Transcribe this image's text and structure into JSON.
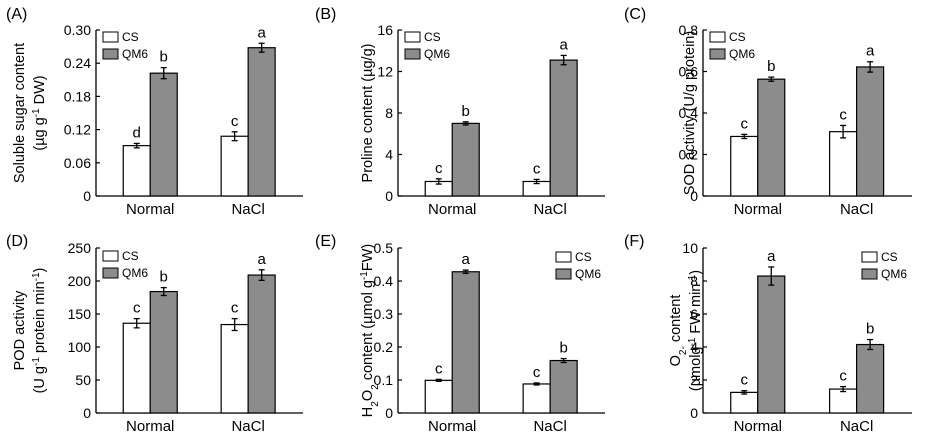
{
  "chart_data": [
    {
      "type": "bar",
      "panel": "(A)",
      "ylabel_lines": [
        [
          {
            "t": "Soluble sugar content"
          }
        ],
        [
          {
            "t": "(µg g"
          },
          {
            "t": "-1",
            "sup": true
          },
          {
            "t": " DW)"
          }
        ]
      ],
      "categories": [
        "Normal",
        "NaCl"
      ],
      "series": [
        {
          "name": "CS",
          "values": [
            0.091,
            0.108
          ],
          "errors": [
            0.004,
            0.008
          ],
          "labels": [
            "d",
            "c"
          ]
        },
        {
          "name": "QM6",
          "values": [
            0.222,
            0.268
          ],
          "errors": [
            0.01,
            0.008
          ],
          "labels": [
            "b",
            "a"
          ]
        }
      ],
      "ylim": [
        0,
        0.3
      ],
      "yticks": [
        "0",
        "0.06",
        "0.12",
        "0.18",
        "0.24",
        "0.30"
      ],
      "legend": [
        "CS",
        "QM6"
      ],
      "legend_position": "top-left"
    },
    {
      "type": "bar",
      "panel": "(B)",
      "ylabel_lines": [
        [
          {
            "t": "Proline content (µg/g)"
          }
        ]
      ],
      "categories": [
        "Normal",
        "NaCl"
      ],
      "series": [
        {
          "name": "CS",
          "values": [
            1.4,
            1.4
          ],
          "errors": [
            0.25,
            0.2
          ],
          "labels": [
            "c",
            "c"
          ]
        },
        {
          "name": "QM6",
          "values": [
            7.0,
            13.1
          ],
          "errors": [
            0.15,
            0.45
          ],
          "labels": [
            "b",
            "a"
          ]
        }
      ],
      "ylim": [
        0,
        16
      ],
      "yticks": [
        "0",
        "4",
        "8",
        "12",
        "16"
      ],
      "legend": [
        "CS",
        "QM6"
      ],
      "legend_position": "top-left"
    },
    {
      "type": "bar",
      "panel": "(C)",
      "ylabel_lines": [
        [
          {
            "t": "SOD activity (U/g protein)"
          }
        ]
      ],
      "categories": [
        "Normal",
        "NaCl"
      ],
      "series": [
        {
          "name": "CS",
          "values": [
            0.287,
            0.31
          ],
          "errors": [
            0.01,
            0.03
          ],
          "labels": [
            "c",
            "c"
          ]
        },
        {
          "name": "QM6",
          "values": [
            0.563,
            0.622
          ],
          "errors": [
            0.01,
            0.025
          ],
          "labels": [
            "b",
            "a"
          ]
        }
      ],
      "ylim": [
        0,
        0.8
      ],
      "yticks": [
        "0",
        "0.2",
        "0.4",
        "0.6",
        "0.8"
      ],
      "legend": [
        "CS",
        "QM6"
      ],
      "legend_position": "top-left"
    },
    {
      "type": "bar",
      "panel": "(D)",
      "ylabel_lines": [
        [
          {
            "t": "POD activity"
          }
        ],
        [
          {
            "t": "(U g"
          },
          {
            "t": "-1",
            "sup": true
          },
          {
            "t": " protein min"
          },
          {
            "t": "-1",
            "sup": true
          },
          {
            "t": ")"
          }
        ]
      ],
      "categories": [
        "Normal",
        "NaCl"
      ],
      "series": [
        {
          "name": "CS",
          "values": [
            136,
            134
          ],
          "errors": [
            7,
            9
          ],
          "labels": [
            "c",
            "c"
          ]
        },
        {
          "name": "QM6",
          "values": [
            184,
            209
          ],
          "errors": [
            6,
            8
          ],
          "labels": [
            "b",
            "a"
          ]
        }
      ],
      "ylim": [
        0,
        250
      ],
      "yticks": [
        "0",
        "50",
        "100",
        "150",
        "200",
        "250"
      ],
      "legend": [
        "CS",
        "QM6"
      ],
      "legend_position": "top-left"
    },
    {
      "type": "bar",
      "panel": "(E)",
      "ylabel_lines": [
        [
          {
            "t": "H"
          },
          {
            "t": "2",
            "sub": true
          },
          {
            "t": "O"
          },
          {
            "t": "2",
            "sub": true
          },
          {
            "t": " content (µmol g"
          },
          {
            "t": "-1",
            "sup": true
          },
          {
            "t": "FW)"
          }
        ]
      ],
      "categories": [
        "Normal",
        "NaCl"
      ],
      "series": [
        {
          "name": "CS",
          "values": [
            0.099,
            0.088
          ],
          "errors": [
            0.003,
            0.003
          ],
          "labels": [
            "c",
            "c"
          ]
        },
        {
          "name": "QM6",
          "values": [
            0.428,
            0.159
          ],
          "errors": [
            0.005,
            0.006
          ],
          "labels": [
            "a",
            "b"
          ]
        }
      ],
      "ylim": [
        0,
        0.5
      ],
      "yticks": [
        "0",
        "0.1",
        "0.2",
        "0.3",
        "0.4",
        "0.5"
      ],
      "legend": [
        "CS",
        "QM6"
      ],
      "legend_position": "top-right"
    },
    {
      "type": "bar",
      "panel": "(F)",
      "ylabel_lines": [
        [
          {
            "t": "O"
          },
          {
            "t": "2-",
            "sub": true
          },
          {
            "t": " content"
          }
        ],
        [
          {
            "t": "(µmolg"
          },
          {
            "t": "-1",
            "sup": true
          },
          {
            "t": " FW min"
          },
          {
            "t": "-1",
            "sup": true
          },
          {
            "t": ")"
          }
        ]
      ],
      "categories": [
        "Normal",
        "NaCl"
      ],
      "series": [
        {
          "name": "CS",
          "values": [
            1.25,
            1.45
          ],
          "errors": [
            0.1,
            0.15
          ],
          "labels": [
            "c",
            "c"
          ]
        },
        {
          "name": "QM6",
          "values": [
            8.3,
            4.15
          ],
          "errors": [
            0.55,
            0.3
          ],
          "labels": [
            "a",
            "b"
          ]
        }
      ],
      "ylim": [
        0,
        10
      ],
      "yticks": [
        "0",
        "2",
        "4",
        "6",
        "8",
        "10"
      ],
      "legend": [
        "CS",
        "QM6"
      ],
      "legend_position": "top-right"
    }
  ],
  "colors": {
    "CS": "#ffffff",
    "QM6": "#8c8c8c",
    "stroke": "#000000"
  }
}
